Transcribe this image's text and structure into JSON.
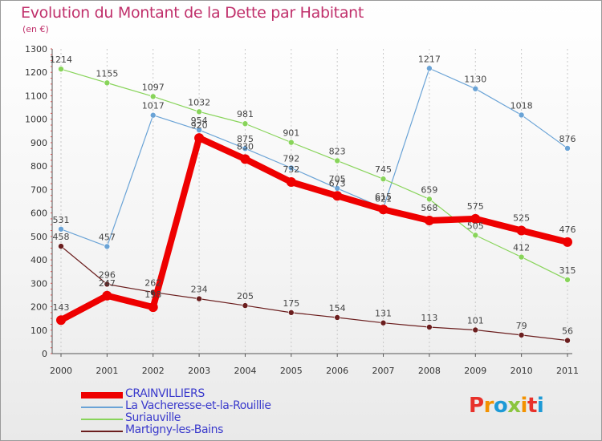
{
  "title": "Evolution du Montant de la Dette par Habitant",
  "subtitle": "(en €)",
  "logo": {
    "text": "Proxiti",
    "colors": [
      "#e8312a",
      "#f39200",
      "#1d9ad6",
      "#8bc53f",
      "#f39200",
      "#e8312a",
      "#1d9ad6"
    ]
  },
  "chart_data": {
    "type": "line",
    "x": [
      "2000",
      "2001",
      "2002",
      "2003",
      "2004",
      "2005",
      "2006",
      "2007",
      "2008",
      "2009",
      "2010",
      "2011"
    ],
    "ylim": [
      0,
      1300
    ],
    "yticks": [
      0,
      100,
      200,
      300,
      400,
      500,
      600,
      700,
      800,
      900,
      1000,
      1100,
      1200,
      1300
    ],
    "grid": "vertical",
    "series": [
      {
        "name": "CRAINVILLIERS",
        "color": "#ee0000",
        "width": 8,
        "marker": 6,
        "values": [
          143,
          247,
          198,
          920,
          830,
          732,
          673,
          615,
          568,
          575,
          525,
          476
        ]
      },
      {
        "name": "La Vacheresse-et-la-Rouillie",
        "color": "#6aa3d6",
        "width": 1.2,
        "marker": 3.5,
        "values": [
          531,
          457,
          1017,
          954,
          875,
          792,
          705,
          621,
          1217,
          1130,
          1018,
          876
        ]
      },
      {
        "name": "Suriauville",
        "color": "#88d45a",
        "width": 1.2,
        "marker": 3.5,
        "values": [
          1214,
          1155,
          1097,
          1032,
          981,
          901,
          823,
          745,
          659,
          505,
          412,
          315
        ]
      },
      {
        "name": "Martigny-les-Bains",
        "color": "#6b1e1e",
        "width": 1.2,
        "marker": 3.5,
        "values": [
          458,
          296,
          262,
          234,
          205,
          175,
          154,
          131,
          113,
          101,
          79,
          56
        ]
      }
    ]
  }
}
